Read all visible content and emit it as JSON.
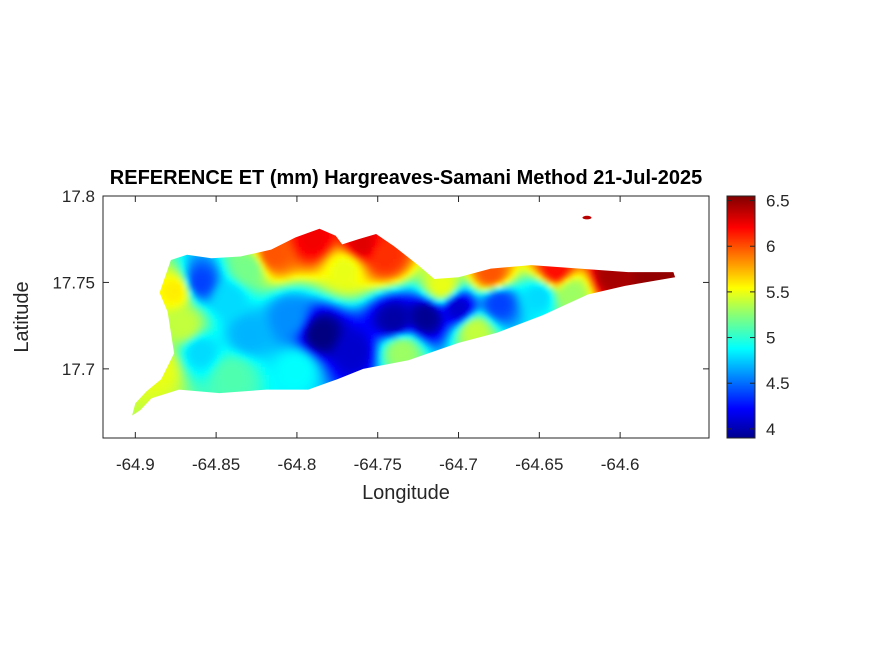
{
  "chart_data": {
    "type": "heatmap",
    "title": "REFERENCE ET (mm) Hargreaves-Samani Method  21-Jul-2025",
    "xlabel": "Longitude",
    "ylabel": "Latitude",
    "xlim": [
      -64.92,
      -64.545
    ],
    "ylim": [
      17.66,
      17.8
    ],
    "xticks": [
      -64.9,
      -64.85,
      -64.8,
      -64.75,
      -64.7,
      -64.65,
      -64.6
    ],
    "xtick_labels": [
      "-64.9",
      "-64.85",
      "-64.8",
      "-64.75",
      "-64.7",
      "-64.65",
      "-64.6"
    ],
    "yticks": [
      17.7,
      17.75,
      17.8
    ],
    "ytick_labels": [
      "17.7",
      "17.75",
      "17.8"
    ],
    "colormap": "jet",
    "colorbar": {
      "clim": [
        3.9,
        6.55
      ],
      "ticks": [
        4,
        4.5,
        5,
        5.5,
        6,
        6.5
      ],
      "tick_labels": [
        "4",
        "4.5",
        "5",
        "5.5",
        "6",
        "6.5"
      ]
    },
    "island_outline": [
      [
        -64.9,
        17.68
      ],
      [
        -64.893,
        17.687
      ],
      [
        -64.884,
        17.694
      ],
      [
        -64.876,
        17.709
      ],
      [
        -64.88,
        17.733
      ],
      [
        -64.885,
        17.744
      ],
      [
        -64.878,
        17.763
      ],
      [
        -64.868,
        17.766
      ],
      [
        -64.853,
        17.764
      ],
      [
        -64.835,
        17.765
      ],
      [
        -64.816,
        17.769
      ],
      [
        -64.801,
        17.776
      ],
      [
        -64.786,
        17.781
      ],
      [
        -64.776,
        17.777
      ],
      [
        -64.772,
        17.772
      ],
      [
        -64.762,
        17.775
      ],
      [
        -64.751,
        17.778
      ],
      [
        -64.74,
        17.771
      ],
      [
        -64.725,
        17.76
      ],
      [
        -64.715,
        17.752
      ],
      [
        -64.7,
        17.753
      ],
      [
        -64.68,
        17.758
      ],
      [
        -64.655,
        17.76
      ],
      [
        -64.625,
        17.758
      ],
      [
        -64.595,
        17.756
      ],
      [
        -64.567,
        17.756
      ],
      [
        -64.566,
        17.753
      ],
      [
        -64.597,
        17.748
      ],
      [
        -64.62,
        17.743
      ],
      [
        -64.648,
        17.731
      ],
      [
        -64.676,
        17.721
      ],
      [
        -64.7,
        17.715
      ],
      [
        -64.731,
        17.705
      ],
      [
        -64.759,
        17.7
      ],
      [
        -64.775,
        17.694
      ],
      [
        -64.793,
        17.688
      ],
      [
        -64.819,
        17.688
      ],
      [
        -64.848,
        17.686
      ],
      [
        -64.873,
        17.688
      ],
      [
        -64.89,
        17.683
      ],
      [
        -64.897,
        17.676
      ],
      [
        -64.902,
        17.673
      ]
    ],
    "value_field": [
      {
        "lon": -64.76,
        "lat": 17.772,
        "et": 6.3
      },
      {
        "lon": -64.79,
        "lat": 17.775,
        "et": 6.25
      },
      {
        "lon": -64.745,
        "lat": 17.765,
        "et": 6.1
      },
      {
        "lon": -64.815,
        "lat": 17.766,
        "et": 6.0
      },
      {
        "lon": -64.64,
        "lat": 17.757,
        "et": 6.2
      },
      {
        "lon": -64.605,
        "lat": 17.754,
        "et": 6.45
      },
      {
        "lon": -64.58,
        "lat": 17.754,
        "et": 6.5
      },
      {
        "lon": -64.68,
        "lat": 17.755,
        "et": 6.0
      },
      {
        "lon": -64.71,
        "lat": 17.748,
        "et": 5.5
      },
      {
        "lon": -64.77,
        "lat": 17.758,
        "et": 5.5
      },
      {
        "lon": -64.83,
        "lat": 17.758,
        "et": 5.2
      },
      {
        "lon": -64.875,
        "lat": 17.745,
        "et": 5.6
      },
      {
        "lon": -64.87,
        "lat": 17.725,
        "et": 5.4
      },
      {
        "lon": -64.885,
        "lat": 17.7,
        "et": 5.5
      },
      {
        "lon": -64.86,
        "lat": 17.75,
        "et": 4.4
      },
      {
        "lon": -64.842,
        "lat": 17.741,
        "et": 4.8
      },
      {
        "lon": -64.83,
        "lat": 17.72,
        "et": 4.7
      },
      {
        "lon": -64.805,
        "lat": 17.73,
        "et": 4.6
      },
      {
        "lon": -64.785,
        "lat": 17.72,
        "et": 3.9
      },
      {
        "lon": -64.765,
        "lat": 17.71,
        "et": 4.1
      },
      {
        "lon": -64.74,
        "lat": 17.728,
        "et": 4.0
      },
      {
        "lon": -64.72,
        "lat": 17.73,
        "et": 3.95
      },
      {
        "lon": -64.7,
        "lat": 17.735,
        "et": 4.1
      },
      {
        "lon": -64.675,
        "lat": 17.738,
        "et": 4.4
      },
      {
        "lon": -64.65,
        "lat": 17.742,
        "et": 4.8
      },
      {
        "lon": -64.63,
        "lat": 17.744,
        "et": 5.3
      },
      {
        "lon": -64.69,
        "lat": 17.722,
        "et": 5.4
      },
      {
        "lon": -64.735,
        "lat": 17.71,
        "et": 5.3
      },
      {
        "lon": -64.8,
        "lat": 17.7,
        "et": 4.9
      },
      {
        "lon": -64.84,
        "lat": 17.696,
        "et": 5.1
      },
      {
        "lon": -64.86,
        "lat": 17.71,
        "et": 4.8
      },
      {
        "lon": -64.62,
        "lat": 17.787,
        "et": 6.4
      }
    ]
  }
}
